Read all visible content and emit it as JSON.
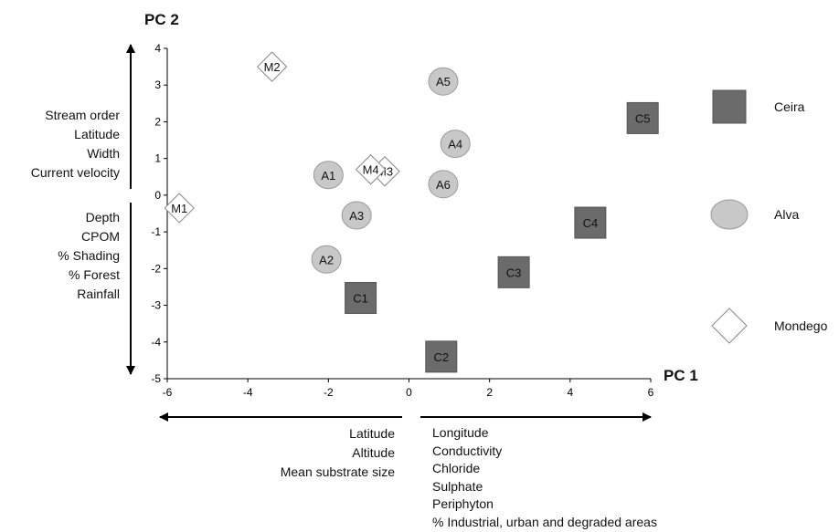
{
  "chart_data": {
    "type": "scatter",
    "xlim": [
      -6,
      6
    ],
    "ylim": [
      -5,
      4
    ],
    "xticks": [
      "-6",
      "-4",
      "-2",
      "0",
      "2",
      "4",
      "6"
    ],
    "yticks": [
      "4",
      "3",
      "2",
      "1",
      "0",
      "-1",
      "-2",
      "-3",
      "-4",
      "-5"
    ],
    "xlabel": "PC 1",
    "ylabel": "PC 2",
    "series": [
      {
        "name": "Ceira",
        "marker": "square",
        "color": "#6b6b6b",
        "points": [
          {
            "label": "C1",
            "x": -1.2,
            "y": -2.8
          },
          {
            "label": "C2",
            "x": 0.8,
            "y": -4.4
          },
          {
            "label": "C3",
            "x": 2.6,
            "y": -2.1
          },
          {
            "label": "C4",
            "x": 4.5,
            "y": -0.75
          },
          {
            "label": "C5",
            "x": 5.8,
            "y": 2.1
          }
        ]
      },
      {
        "name": "Alva",
        "marker": "circle",
        "color": "#c8c8c8",
        "points": [
          {
            "label": "A1",
            "x": -2.0,
            "y": 0.55
          },
          {
            "label": "A2",
            "x": -2.05,
            "y": -1.75
          },
          {
            "label": "A3",
            "x": -1.3,
            "y": -0.55
          },
          {
            "label": "A4",
            "x": 1.15,
            "y": 1.4
          },
          {
            "label": "A5",
            "x": 0.85,
            "y": 3.1
          },
          {
            "label": "A6",
            "x": 0.85,
            "y": 0.3
          }
        ]
      },
      {
        "name": "Mondego",
        "marker": "diamond",
        "color": "#ffffff",
        "points": [
          {
            "label": "M1",
            "x": -5.7,
            "y": -0.35
          },
          {
            "label": "M2",
            "x": -3.4,
            "y": 3.5
          },
          {
            "label": "M3",
            "x": -0.6,
            "y": 0.65
          },
          {
            "label": "M4",
            "x": -0.95,
            "y": 0.7
          }
        ]
      }
    ],
    "annotations": {
      "pc2_positive": [
        "Stream order",
        "Latitude",
        "Width",
        "Current velocity"
      ],
      "pc2_negative": [
        "Depth",
        "CPOM",
        "% Shading",
        "% Forest",
        "Rainfall"
      ],
      "pc1_negative": [
        "Latitude",
        "Altitude",
        "Mean substrate size"
      ],
      "pc1_positive": [
        "Longitude",
        "Conductivity",
        "Chloride",
        "Sulphate",
        "Periphyton",
        "% Industrial, urban and degraded areas"
      ]
    }
  }
}
